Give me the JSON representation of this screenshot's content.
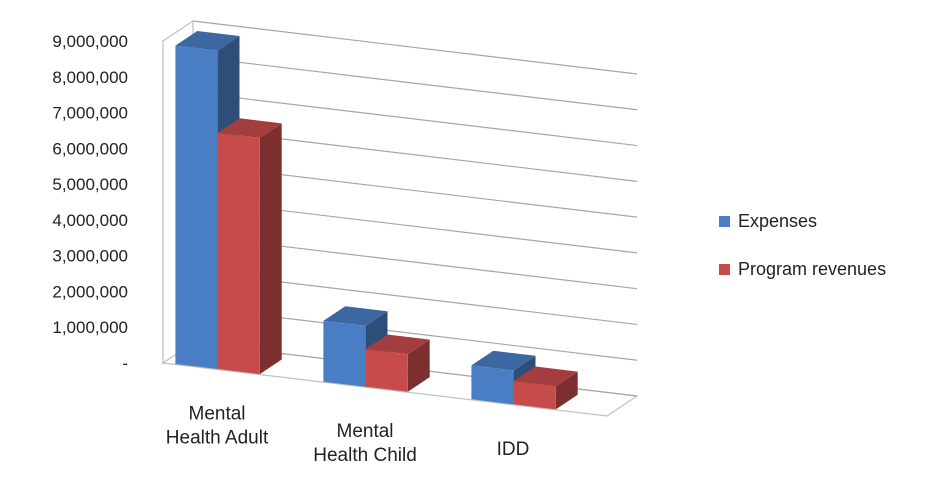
{
  "chart_data": {
    "type": "bar",
    "style": "3d-clustered-column",
    "categories": [
      "Mental Health Adult",
      "Mental Health Child",
      "IDD"
    ],
    "category_label_lines": [
      [
        "Mental",
        "Health Adult"
      ],
      [
        "Mental",
        "Health Child"
      ],
      [
        "IDD"
      ]
    ],
    "series": [
      {
        "name": "Expenses",
        "color": "#4a7ec4",
        "values": [
          8900000,
          1700000,
          950000
        ]
      },
      {
        "name": "Program revenues",
        "color": "#c84b4b",
        "values": [
          6600000,
          1050000,
          650000
        ]
      }
    ],
    "ylim": [
      0,
      9000000
    ],
    "y_ticks": [
      "-",
      "1,000,000",
      "2,000,000",
      "3,000,000",
      "4,000,000",
      "5,000,000",
      "6,000,000",
      "7,000,000",
      "8,000,000",
      "9,000,000"
    ],
    "title": "",
    "xlabel": "",
    "ylabel": "",
    "grid": true,
    "legend_position": "right"
  }
}
